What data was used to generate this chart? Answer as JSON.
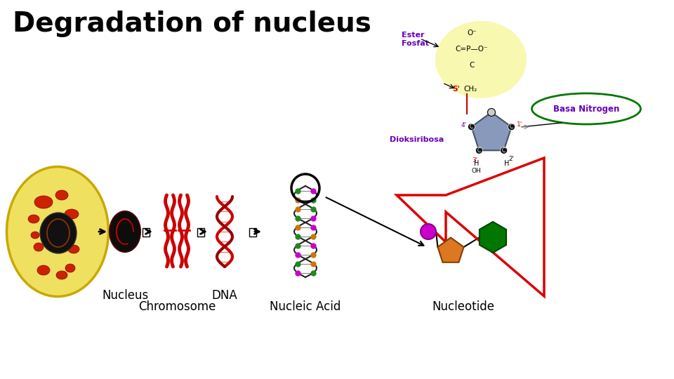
{
  "title": "Degradation of nucleus",
  "title_fontsize": 28,
  "title_color": "#000000",
  "title_fontweight": "bold",
  "bg_color": "#ffffff",
  "labels": {
    "nucleus": "Nucleus",
    "chromosome": "Chromosome",
    "dna": "DNA",
    "nucleic_acid": "Nucleic Acid",
    "nucleotide": "Nucleotide",
    "ester_fosfat": "Ester\nFosfat",
    "basa_nitrogen": "Basa Nitrogen",
    "dioksiribosa": "Dioksiribosa",
    "five_prime": "5'",
    "one_prime": "1'",
    "four_prime": "4'",
    "three_prime": "3'",
    "two_prime": "2'"
  },
  "colors": {
    "red": "#cc0000",
    "dark_red": "#8b0000",
    "yellow_cell": "#f0e060",
    "yellow_ellipse": "#f8f8b0",
    "black": "#000000",
    "blue_purple": "#6600bb",
    "dark_green": "#007700",
    "steel_blue": "#8899bb",
    "orange": "#dd7722",
    "magenta": "#cc00cc",
    "arrow_red": "#dd0000",
    "green": "#228822",
    "cell_border": "#c8a800"
  }
}
